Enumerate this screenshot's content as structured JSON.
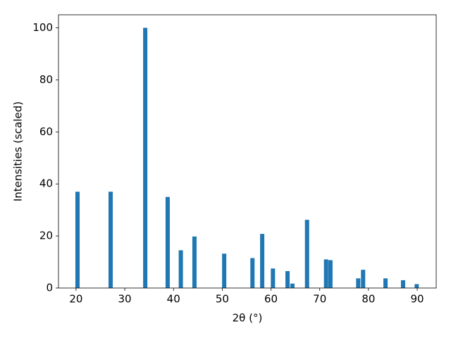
{
  "chart_data": {
    "type": "bar",
    "x": [
      20.3,
      27.1,
      34.2,
      38.8,
      41.5,
      44.3,
      50.4,
      56.2,
      58.2,
      60.4,
      63.4,
      64.4,
      67.4,
      71.3,
      72.2,
      77.9,
      78.9,
      83.5,
      87.1,
      89.9
    ],
    "values": [
      37,
      37,
      100,
      35,
      14.5,
      19.8,
      13.2,
      11.5,
      20.8,
      7.5,
      6.5,
      1.7,
      26.2,
      11,
      10.7,
      3.7,
      7,
      3.7,
      3,
      1.5
    ],
    "color": "#1f77b4",
    "xlabel": "2θ (°)",
    "ylabel": "Intensities (scaled)",
    "xlim": [
      16.4,
      93.9
    ],
    "ylim": [
      0,
      105
    ],
    "xticks": [
      20,
      30,
      40,
      50,
      60,
      70,
      80,
      90
    ],
    "yticks": [
      0,
      20,
      40,
      60,
      80,
      100
    ],
    "grid": false
  }
}
